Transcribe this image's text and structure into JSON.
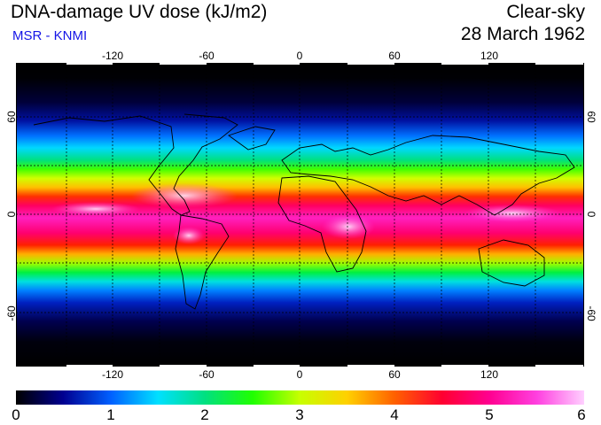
{
  "header": {
    "title": "DNA-damage UV dose (kJ/m2)",
    "subtitle": "MSR - KNMI",
    "sky_condition": "Clear-sky",
    "date": "28 March 1962"
  },
  "map": {
    "lon_ticks": [
      "-120",
      "-60",
      "0",
      "60",
      "120"
    ],
    "lat_ticks": [
      "60",
      "0",
      "-60"
    ],
    "grid": true,
    "grid_style": "dotted",
    "coastlines": true,
    "background_color": "#000000"
  },
  "colorbar": {
    "labels": [
      "0",
      "1",
      "2",
      "3",
      "4",
      "5",
      "6"
    ],
    "min": 0,
    "max": 6,
    "colors": [
      "#000000",
      "#000090",
      "#0060ff",
      "#00e0ff",
      "#00e080",
      "#20ff00",
      "#c8ff00",
      "#ffd000",
      "#ff6000",
      "#ff0030",
      "#ff0090",
      "#ff40e0",
      "#ffd0ff"
    ]
  }
}
